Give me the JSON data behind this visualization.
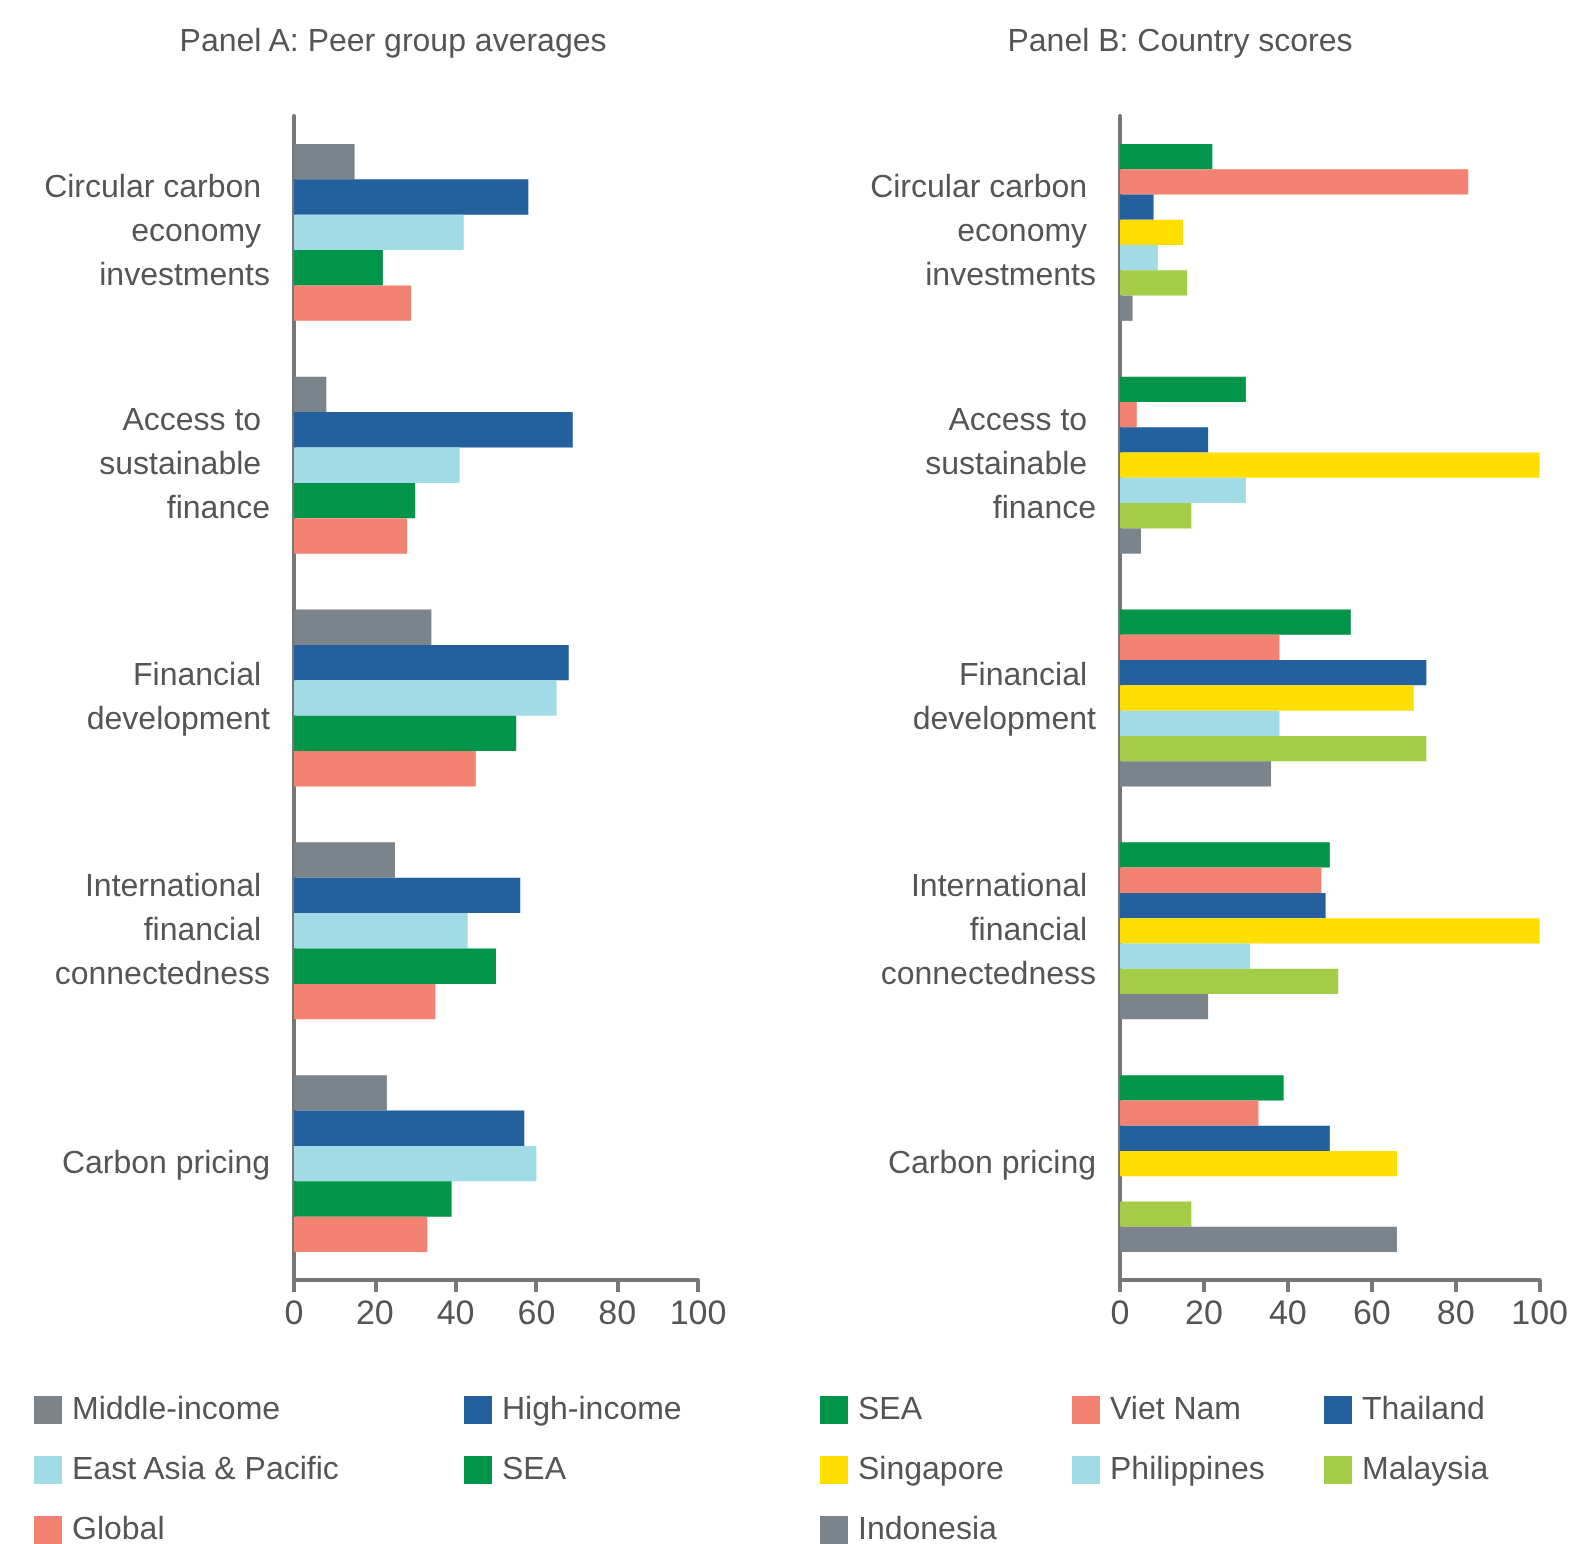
{
  "chart_data": [
    {
      "type": "bar",
      "orientation": "horizontal",
      "title": "Panel A: Peer group averages",
      "categories": [
        "Circular carbon economy investments",
        "Access to sustainable finance",
        "Financial development",
        "International financial connectedness",
        "Carbon pricing"
      ],
      "series": [
        {
          "name": "Middle-income",
          "color": "#7b848b",
          "values": [
            15,
            8,
            34,
            25,
            23
          ]
        },
        {
          "name": "High-income",
          "color": "#245f9e",
          "values": [
            58,
            69,
            68,
            56,
            57
          ]
        },
        {
          "name": "East Asia & Pacific",
          "color": "#a0dbe6",
          "values": [
            42,
            41,
            65,
            43,
            60
          ]
        },
        {
          "name": "SEA",
          "color": "#009548",
          "values": [
            22,
            30,
            55,
            50,
            39
          ]
        },
        {
          "name": "Global",
          "color": "#f48273",
          "values": [
            29,
            28,
            45,
            35,
            33
          ]
        }
      ],
      "xlim": [
        0,
        100
      ],
      "xticks": [
        0,
        20,
        40,
        60,
        80,
        100
      ],
      "grid": false,
      "legend": "bottom"
    },
    {
      "type": "bar",
      "orientation": "horizontal",
      "title": "Panel B: Country scores",
      "categories": [
        "Circular carbon economy investments",
        "Access to sustainable finance",
        "Financial development",
        "International financial connectedness",
        "Carbon pricing"
      ],
      "series": [
        {
          "name": "SEA",
          "color": "#009548",
          "values": [
            22,
            30,
            55,
            50,
            39
          ]
        },
        {
          "name": "Viet Nam",
          "color": "#f48273",
          "values": [
            83,
            4,
            38,
            48,
            33
          ]
        },
        {
          "name": "Thailand",
          "color": "#245f9e",
          "values": [
            8,
            21,
            73,
            49,
            50
          ]
        },
        {
          "name": "Singapore",
          "color": "#ffde00",
          "values": [
            15,
            100,
            70,
            100,
            66
          ]
        },
        {
          "name": "Philippines",
          "color": "#a0dbe6",
          "values": [
            9,
            30,
            38,
            31,
            null
          ]
        },
        {
          "name": "Malaysia",
          "color": "#a3cd46",
          "values": [
            16,
            17,
            73,
            52,
            17
          ]
        },
        {
          "name": "Indonesia",
          "color": "#7b848b",
          "values": [
            3,
            5,
            36,
            21,
            66
          ]
        }
      ],
      "xlim": [
        0,
        100
      ],
      "xticks": [
        0,
        20,
        40,
        60,
        80,
        100
      ],
      "grid": false,
      "legend": "bottom"
    }
  ]
}
